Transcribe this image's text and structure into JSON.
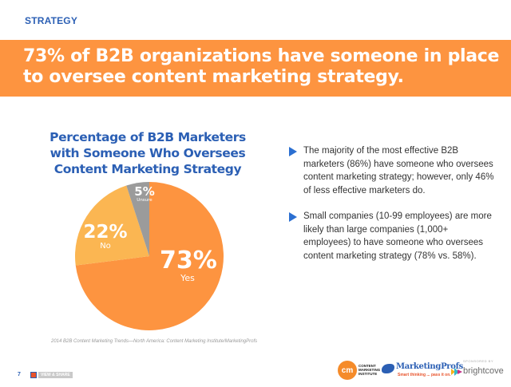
{
  "header": {
    "section_label": "STRATEGY",
    "title_line1": "73% of B2B organizations have someone in place",
    "title_line2": "to oversee content marketing strategy."
  },
  "colors": {
    "accent_blue": "#2b5fb4",
    "banner_orange": "#fd9440",
    "slice_yes": "#fd9440",
    "slice_no": "#fbb652",
    "slice_unsure": "#9b9b9b",
    "bullet_arrow": "#2b6fd1"
  },
  "chart_data": {
    "type": "pie",
    "title": "Percentage of B2B Marketers with Someone Who Oversees Content Marketing Strategy",
    "title_lines": [
      "Percentage of B2B Marketers",
      "with Someone Who Oversees",
      "Content Marketing Strategy"
    ],
    "categories": [
      "Yes",
      "No",
      "Unsure"
    ],
    "values": [
      73,
      22,
      5
    ],
    "labels": [
      {
        "pct": "73%",
        "name": "Yes"
      },
      {
        "pct": "22%",
        "name": "No"
      },
      {
        "pct": "5%",
        "name": "Unsure"
      }
    ],
    "legend": "none (inline labels)",
    "start_angle": "12 o'clock, clockwise: Yes, No, Unsure"
  },
  "bullets": [
    {
      "text": "The majority of the most effective B2B marketers (86%) have someone who oversees content marketing strategy; however, only 46% of less effective marketers do."
    },
    {
      "text": "Small companies (10-99 employees) are more likely than large companies (1,000+ employees) to have someone who oversees content marketing strategy (78% vs. 58%)."
    }
  ],
  "source": "2014 B2B Content Marketing Trends—North America: Content Marketing Institute/MarketingProfs",
  "footer": {
    "page_number": "7",
    "badge_text": "VIEW & SHARE",
    "logos": {
      "cmi_mark": "cm",
      "cmi_text": "CONTENT MARKETING INSTITUTE",
      "mp_name": "MarketingProfs",
      "mp_tagline": "Smart thinking ... pass it on.",
      "sponsored_by": "SPONSORED BY",
      "brightcove": "brightcove"
    }
  }
}
